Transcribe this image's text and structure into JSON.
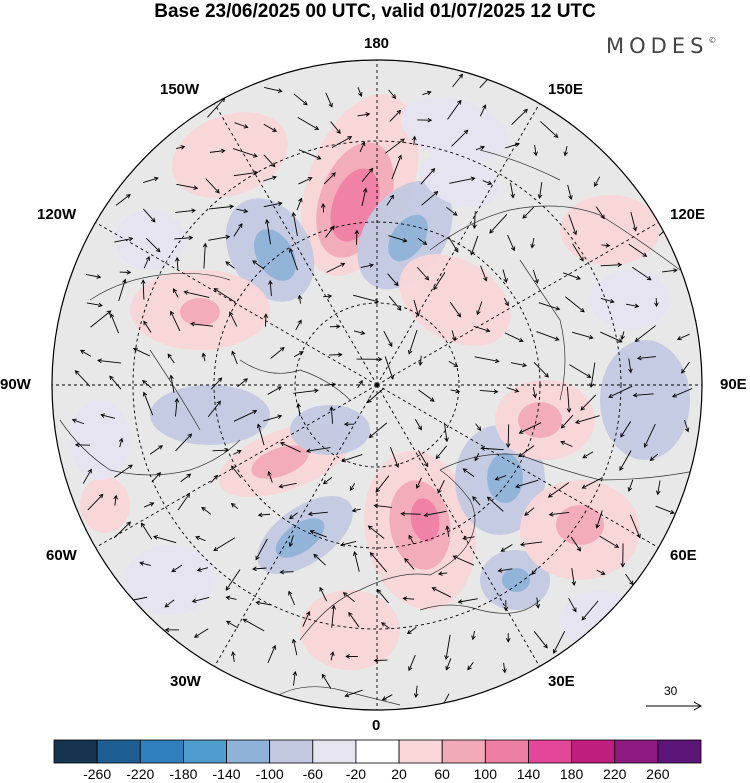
{
  "title": "Base 23/06/2025 00 UTC, valid 01/07/2025 12 UTC",
  "brand": "MODES",
  "brand_mark": "©",
  "longitude_labels": {
    "top": "180",
    "bottom": "0",
    "left": "90W",
    "right": "90E",
    "upper_left_1": "150W",
    "upper_left_2": "120W",
    "upper_right_1": "150E",
    "upper_right_2": "120E",
    "lower_left_1": "60W",
    "lower_left_2": "30W",
    "lower_right_1": "60E",
    "lower_right_2": "30E"
  },
  "reference_vector": {
    "value": "30"
  },
  "colorbar": {
    "tick_labels": [
      "-260",
      "-220",
      "-180",
      "-140",
      "-100",
      "-60",
      "-20",
      "20",
      "60",
      "100",
      "140",
      "180",
      "220",
      "260"
    ],
    "colors": [
      "#16334f",
      "#1d5f93",
      "#2f7fbf",
      "#4f9ccf",
      "#8fb2d8",
      "#c3c9e1",
      "#e7e4f1",
      "#ffffff",
      "#f9d6d8",
      "#f2aab8",
      "#ee7fa4",
      "#e2479a",
      "#c01e7f",
      "#8e1a82",
      "#5c1677"
    ]
  },
  "colors": {
    "land_background": "#e8e8e8",
    "graticule": "#000000"
  }
}
